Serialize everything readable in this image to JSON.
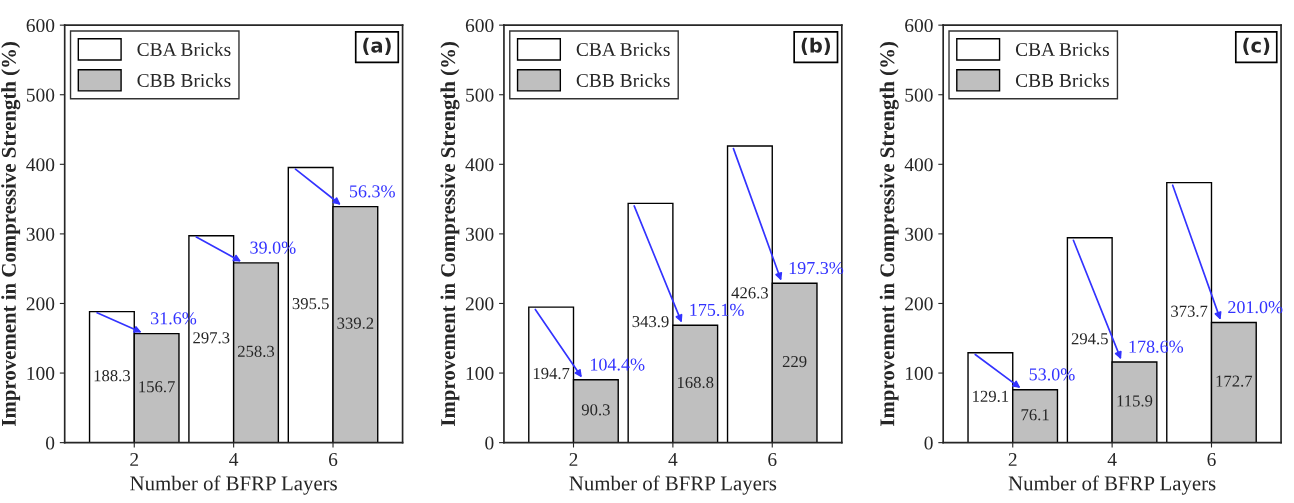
{
  "chart_data": [
    {
      "type": "bar",
      "xlabel": "Number of BFRP Layers",
      "ylabel": "Improvement in Compressive Strength (%)",
      "categories": [
        "2",
        "4",
        "6"
      ],
      "series": [
        {
          "name": "CBA Bricks",
          "color": "#ffffff",
          "values": [
            188.3,
            297.3,
            395.5
          ]
        },
        {
          "name": "CBB Bricks",
          "color": "#bfbfbf",
          "values": [
            156.7,
            258.3,
            339.2
          ]
        }
      ],
      "data_labels": true,
      "ylim": [
        0,
        600
      ],
      "yticks": [
        0,
        100,
        200,
        300,
        400,
        500,
        600
      ],
      "legend": "top left",
      "grid": false,
      "annotations": [
        "(a)",
        {
          "text": "31.6%",
          "x": "2",
          "y": 156.7
        },
        {
          "text": "39.0%",
          "x": "4",
          "y": 258.3
        },
        {
          "text": "56.3%",
          "x": "6",
          "y": 339.2
        }
      ]
    },
    {
      "type": "bar",
      "xlabel": "Number of BFRP Layers",
      "ylabel": "Improvement in Compressive Strength (%)",
      "categories": [
        "2",
        "4",
        "6"
      ],
      "series": [
        {
          "name": "CBA Bricks",
          "color": "#ffffff",
          "values": [
            194.7,
            343.9,
            426.3
          ]
        },
        {
          "name": "CBB Bricks",
          "color": "#bfbfbf",
          "values": [
            90.3,
            168.8,
            229
          ]
        }
      ],
      "data_labels": true,
      "ylim": [
        0,
        600
      ],
      "yticks": [
        0,
        100,
        200,
        300,
        400,
        500,
        600
      ],
      "legend": "top left",
      "grid": false,
      "annotations": [
        "(b)",
        {
          "text": "104.4%",
          "x": "2",
          "y": 90.3
        },
        {
          "text": "175.1%",
          "x": "4",
          "y": 168.8
        },
        {
          "text": "197.3%",
          "x": "6",
          "y": 229
        }
      ]
    },
    {
      "type": "bar",
      "xlabel": "Number of BFRP Layers",
      "ylabel": "Improvement in Compressive Strength (%)",
      "categories": [
        "2",
        "4",
        "6"
      ],
      "series": [
        {
          "name": "CBA Bricks",
          "color": "#ffffff",
          "values": [
            129.1,
            294.5,
            373.7
          ]
        },
        {
          "name": "CBB Bricks",
          "color": "#bfbfbf",
          "values": [
            76.1,
            115.9,
            172.7
          ]
        }
      ],
      "data_labels": true,
      "ylim": [
        0,
        600
      ],
      "yticks": [
        0,
        100,
        200,
        300,
        400,
        500,
        600
      ],
      "legend": "top left",
      "grid": false,
      "annotations": [
        "(c)",
        {
          "text": "53.0%",
          "x": "2",
          "y": 76.1
        },
        {
          "text": "178.6%",
          "x": "4",
          "y": 115.9
        },
        {
          "text": "201.0%",
          "x": "6",
          "y": 172.7
        }
      ]
    }
  ]
}
